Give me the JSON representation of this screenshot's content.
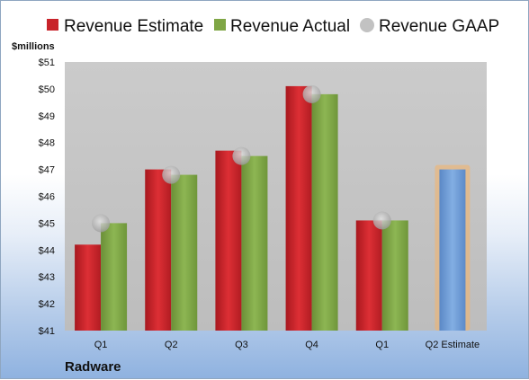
{
  "company": "Radware",
  "colors": {
    "estimate": "#c8232a",
    "actual": "#7fa645",
    "gaap": "#b7b7b7",
    "estimate_forward": "#6f9bd6",
    "estimate_forward_glow": "#f6b366",
    "plot_background": "#c6c6c6"
  },
  "chart_data": {
    "type": "bar",
    "ylabel": "$millions",
    "ylim": [
      41,
      51
    ],
    "yticks": [
      "$41",
      "$42",
      "$43",
      "$44",
      "$45",
      "$46",
      "$47",
      "$48",
      "$49",
      "$50",
      "$51"
    ],
    "categories": [
      "Q1",
      "Q2",
      "Q3",
      "Q4",
      "Q1",
      "Q2 Estimate"
    ],
    "legend_position": "top",
    "grid": false,
    "series": [
      {
        "name": "Revenue Estimate",
        "values": [
          44.2,
          47.0,
          47.7,
          50.1,
          45.1,
          47.0
        ]
      },
      {
        "name": "Revenue Actual",
        "values": [
          45.0,
          46.8,
          47.5,
          49.8,
          45.1,
          null
        ]
      },
      {
        "name": "Revenue GAAP",
        "values": [
          45.0,
          46.8,
          47.5,
          49.8,
          45.1,
          null
        ]
      }
    ]
  }
}
